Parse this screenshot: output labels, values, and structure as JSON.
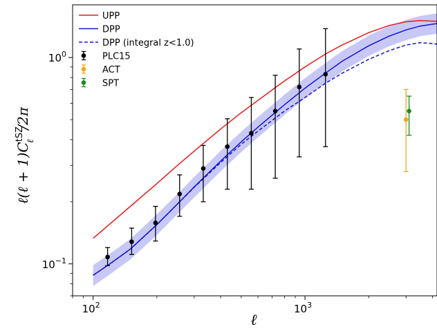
{
  "chart_data": {
    "type": "line",
    "title": "",
    "xlabel": "ℓ",
    "ylabel_parts": {
      "prefix": "ℓ(ℓ + 1)C",
      "superscript": "tSZ",
      "subscript": "ℓ",
      "suffix": "/2π"
    },
    "xscale": "log",
    "yscale": "log",
    "xlim": [
      80,
      4200
    ],
    "ylim": [
      0.07,
      1.8
    ],
    "grid": false,
    "legend_position": "top-left",
    "x_ticks": [
      {
        "value": 100,
        "base": "10",
        "exp": "2"
      },
      {
        "value": 1000,
        "base": "10",
        "exp": "3"
      }
    ],
    "y_ticks": [
      {
        "value": 0.1,
        "base": "10",
        "exp": "−1"
      },
      {
        "value": 1.0,
        "base": "10",
        "exp": "0"
      }
    ],
    "colors": {
      "upp": "#e8191a",
      "dpp": "#1212d6",
      "band": "#9b9bf0",
      "plc15": "#000000",
      "act": "#f5a51e",
      "spt": "#1c8a1c"
    },
    "series": [
      {
        "name": "UPP",
        "style": "solid",
        "x": [
          100,
          120,
          150,
          200,
          250,
          300,
          400,
          500,
          600,
          800,
          1000,
          1250,
          1500,
          2000,
          2500,
          3000,
          3500,
          4000,
          4200
        ],
        "y": [
          0.133,
          0.156,
          0.19,
          0.245,
          0.3,
          0.352,
          0.45,
          0.54,
          0.62,
          0.77,
          0.9,
          1.04,
          1.15,
          1.32,
          1.43,
          1.49,
          1.51,
          1.5,
          1.5
        ]
      },
      {
        "name": "DPP",
        "style": "solid",
        "x": [
          100,
          120,
          150,
          200,
          250,
          300,
          400,
          500,
          600,
          800,
          1000,
          1250,
          1500,
          2000,
          2500,
          3000,
          3500,
          4000,
          4200
        ],
        "y": [
          0.088,
          0.1,
          0.118,
          0.155,
          0.195,
          0.236,
          0.315,
          0.39,
          0.46,
          0.59,
          0.71,
          0.84,
          0.96,
          1.14,
          1.27,
          1.36,
          1.42,
          1.45,
          1.46
        ]
      },
      {
        "name": "DPP (integral z<1.0)",
        "style": "dashed",
        "x": [
          100,
          120,
          150,
          200,
          250,
          300,
          400,
          500,
          600,
          800,
          1000,
          1250,
          1500,
          2000,
          2500,
          3000,
          3500,
          4000,
          4200
        ],
        "y": [
          0.088,
          0.1,
          0.118,
          0.155,
          0.195,
          0.235,
          0.31,
          0.38,
          0.44,
          0.55,
          0.64,
          0.75,
          0.84,
          0.98,
          1.08,
          1.15,
          1.18,
          1.17,
          1.16
        ]
      }
    ],
    "band": {
      "x": [
        100,
        120,
        150,
        200,
        250,
        300,
        400,
        500,
        600,
        800,
        1000,
        1250,
        1500,
        2000,
        2500,
        3000,
        3500,
        4000,
        4200
      ],
      "lower": [
        0.078,
        0.089,
        0.105,
        0.138,
        0.174,
        0.21,
        0.281,
        0.348,
        0.41,
        0.527,
        0.634,
        0.75,
        0.857,
        1.018,
        1.134,
        1.214,
        1.268,
        1.295,
        1.304
      ],
      "upper": [
        0.0985,
        0.112,
        0.132,
        0.174,
        0.218,
        0.264,
        0.353,
        0.437,
        0.515,
        0.661,
        0.795,
        0.941,
        1.075,
        1.277,
        1.422,
        1.523,
        1.59,
        1.624,
        1.635
      ]
    },
    "points": [
      {
        "name": "PLC15",
        "x": [
          117,
          152,
          197,
          256,
          331,
          430,
          558,
          724,
          940,
          1250
        ],
        "y": [
          0.108,
          0.128,
          0.158,
          0.218,
          0.29,
          0.37,
          0.43,
          0.55,
          0.72,
          0.83
        ],
        "err_low": [
          0.098,
          0.111,
          0.129,
          0.17,
          0.2,
          0.23,
          0.23,
          0.26,
          0.33,
          0.37
        ],
        "err_high": [
          0.12,
          0.149,
          0.19,
          0.27,
          0.375,
          0.505,
          0.64,
          0.82,
          1.1,
          1.38
        ]
      },
      {
        "name": "ACT",
        "x": [
          3000
        ],
        "y": [
          0.5
        ],
        "err_low": [
          0.28
        ],
        "err_high": [
          0.7
        ]
      },
      {
        "name": "SPT",
        "x": [
          3100
        ],
        "y": [
          0.55
        ],
        "err_low": [
          0.42
        ],
        "err_high": [
          0.65
        ]
      }
    ]
  }
}
